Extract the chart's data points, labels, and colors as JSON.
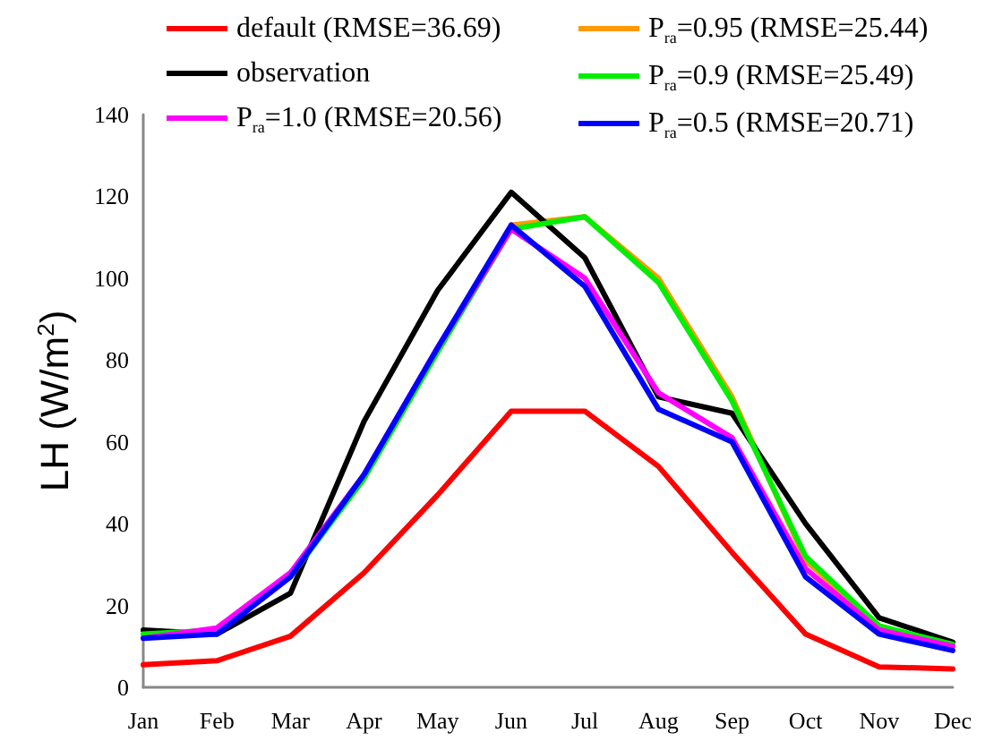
{
  "chart_data": {
    "type": "line",
    "ylabel": "LH (W/m$^{2}$)",
    "categories": [
      "Jan",
      "Feb",
      "Mar",
      "Apr",
      "May",
      "Jun",
      "Jul",
      "Aug",
      "Sep",
      "Oct",
      "Nov",
      "Dec"
    ],
    "ylim": [
      0,
      140
    ],
    "yticks": [
      0,
      20,
      40,
      60,
      80,
      100,
      120,
      140
    ],
    "grid": false,
    "legend": "top",
    "marker": "none",
    "line_style": "solid",
    "series": [
      {
        "name": "default (RMSE=36.69)",
        "color": "#ff0000",
        "values": [
          5.5,
          6.5,
          12.5,
          28,
          47,
          67.5,
          67.5,
          54,
          33,
          13,
          5,
          4.5
        ]
      },
      {
        "name": "P$_{ra}$=0.95 (RMSE=25.44)",
        "color": "#ff9900",
        "values": [
          null,
          null,
          null,
          null,
          null,
          113,
          115,
          100,
          71,
          31,
          15,
          10
        ]
      },
      {
        "name": "observation",
        "color": "#000000",
        "values": [
          14,
          13,
          23,
          65,
          97,
          121,
          105,
          71,
          67,
          40,
          17,
          11
        ]
      },
      {
        "name": "P$_{ra}$=0.9 (RMSE=25.49)",
        "color": "#00ee00",
        "values": [
          13,
          14,
          27,
          51,
          82,
          112,
          115,
          99,
          70,
          32,
          15,
          10.5
        ]
      },
      {
        "name": "P$_{ra}$=1.0 (RMSE=20.56)",
        "color": "#ff00ff",
        "values": [
          12,
          14.5,
          28,
          52,
          83,
          112,
          100,
          72,
          61,
          29,
          14,
          10
        ]
      },
      {
        "name": "P$_{ra}$=0.5 (RMSE=20.71)",
        "color": "#0000ff",
        "values": [
          12,
          13,
          27,
          52,
          83,
          113,
          98,
          68,
          60,
          27,
          13,
          9
        ]
      }
    ]
  }
}
